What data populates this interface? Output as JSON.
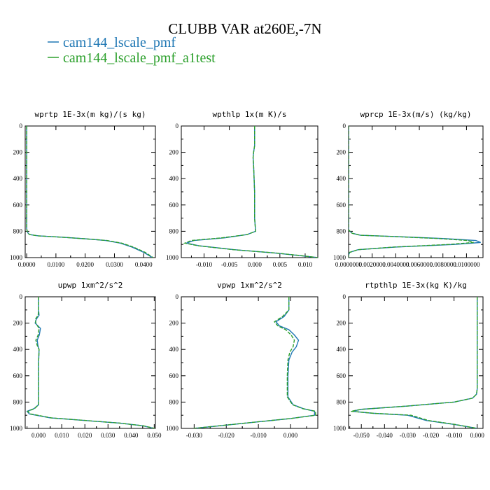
{
  "figure": {
    "title": "CLUBB VAR at260E,-7N",
    "legend": [
      {
        "label": "cam144_lscale_pmf",
        "color": "#1f77b4"
      },
      {
        "label": "cam144_lscale_pmf_a1test",
        "color": "#2ca02c"
      }
    ]
  },
  "chart_data": [
    {
      "type": "line",
      "title": "wprtp  1E-3x(m kg)/(s kg)",
      "xlim": [
        -0.0005,
        0.044
      ],
      "ylim": [
        1000,
        0
      ],
      "yticks": [
        0,
        200,
        400,
        600,
        800,
        1000
      ],
      "xticks": [
        0.0,
        0.01,
        0.02,
        0.03,
        0.04
      ],
      "xtick_labels": [
        "0.0000",
        "0.0100",
        "0.0200",
        "0.0300",
        "0.0400"
      ],
      "grid": false,
      "series": [
        {
          "color": "#1f77b4",
          "dash": false,
          "x": [
            0,
            0,
            0,
            0,
            0,
            0.0002,
            0.0005,
            0.001,
            0.004,
            0.012,
            0.02,
            0.027,
            0.032,
            0.036,
            0.04,
            0.043
          ],
          "y": [
            0,
            200,
            400,
            600,
            780,
            800,
            815,
            825,
            835,
            845,
            857,
            870,
            890,
            920,
            960,
            1000
          ]
        },
        {
          "color": "#2ca02c",
          "dash": true,
          "x": [
            0,
            0,
            0,
            0,
            0,
            0.0002,
            0.0005,
            0.001,
            0.004,
            0.012,
            0.02,
            0.0275,
            0.0325,
            0.0365,
            0.0405,
            0.0432
          ],
          "y": [
            0,
            200,
            400,
            600,
            780,
            800,
            815,
            825,
            835,
            845,
            857,
            870,
            890,
            920,
            960,
            1000
          ]
        }
      ]
    },
    {
      "type": "line",
      "title": "wpthlp  1x(m K)/s",
      "xlim": [
        -0.0145,
        0.0125
      ],
      "ylim": [
        1000,
        0
      ],
      "yticks": [
        0,
        200,
        400,
        600,
        800,
        1000
      ],
      "xticks": [
        -0.01,
        -0.005,
        0.0,
        0.005,
        0.01
      ],
      "xtick_labels": [
        "-0.010",
        "-0.005",
        "0.000",
        "0.005",
        "0.010"
      ],
      "grid": false,
      "series": [
        {
          "color": "#1f77b4",
          "dash": false,
          "x": [
            0,
            0,
            -0.0002,
            -0.0003,
            -0.0002,
            0,
            0,
            0.0002,
            -0.0015,
            -0.006,
            -0.012,
            -0.0135,
            -0.011,
            -0.004,
            0.004,
            0.009,
            0.0125
          ],
          "y": [
            0,
            150,
            200,
            240,
            300,
            500,
            700,
            800,
            825,
            850,
            870,
            890,
            910,
            940,
            965,
            985,
            1000
          ]
        },
        {
          "color": "#2ca02c",
          "dash": true,
          "x": [
            0,
            0,
            -0.0002,
            -0.0003,
            -0.0002,
            0,
            0,
            0.0002,
            -0.0015,
            -0.0065,
            -0.0125,
            -0.0138,
            -0.0112,
            -0.0042,
            0.0042,
            0.0092,
            0.0125
          ],
          "y": [
            0,
            150,
            200,
            240,
            300,
            500,
            700,
            800,
            825,
            850,
            870,
            890,
            910,
            940,
            965,
            985,
            1000
          ]
        }
      ]
    },
    {
      "type": "line",
      "title": "wprcp  1E-3x(m/s) (kg/kg)",
      "xlim": [
        0,
        0.0114
      ],
      "ylim": [
        1000,
        0
      ],
      "yticks": [
        0,
        200,
        400,
        600,
        800,
        1000
      ],
      "xticks": [
        0.0,
        0.002,
        0.004,
        0.006,
        0.008,
        0.01
      ],
      "xtick_labels": [
        "0.0000000",
        "0.0020000",
        "0.0040000",
        "0.0060000",
        "0.0080000",
        "0.0100000"
      ],
      "grid": false,
      "series": [
        {
          "color": "#1f77b4",
          "dash": false,
          "x": [
            0,
            0,
            0,
            0.0003,
            0.001,
            0.004,
            0.008,
            0.0108,
            0.0112,
            0.009,
            0.004,
            0.0008,
            0.0001,
            0,
            0
          ],
          "y": [
            0,
            400,
            790,
            815,
            830,
            840,
            855,
            870,
            885,
            900,
            920,
            940,
            960,
            980,
            1000
          ]
        },
        {
          "color": "#2ca02c",
          "dash": true,
          "x": [
            0,
            0,
            0,
            0.0003,
            0.001,
            0.0038,
            0.0076,
            0.0101,
            0.0106,
            0.0085,
            0.0038,
            0.0008,
            0.0001,
            0,
            0
          ],
          "y": [
            0,
            400,
            790,
            815,
            830,
            840,
            855,
            870,
            885,
            900,
            920,
            940,
            960,
            980,
            1000
          ]
        }
      ]
    },
    {
      "type": "line",
      "title": "upwp  1xm^2/s^2",
      "xlim": [
        -0.0058,
        0.0505
      ],
      "ylim": [
        1000,
        0
      ],
      "yticks": [
        0,
        200,
        400,
        600,
        800,
        1000
      ],
      "xticks": [
        0.0,
        0.01,
        0.02,
        0.03,
        0.04,
        0.05
      ],
      "xtick_labels": [
        "0.000",
        "0.010",
        "0.020",
        "0.030",
        "0.040",
        "0.050"
      ],
      "grid": false,
      "series": [
        {
          "color": "#1f77b4",
          "dash": false,
          "x": [
            0,
            0,
            0.0002,
            -0.001,
            -0.0015,
            0.0008,
            0.0003,
            -0.0006,
            -0.0003,
            0.0002,
            0,
            0,
            0,
            -0.002,
            -0.005,
            -0.004,
            0.005,
            0.02,
            0.035,
            0.045,
            0.05
          ],
          "y": [
            0,
            100,
            140,
            170,
            200,
            240,
            290,
            330,
            370,
            400,
            500,
            700,
            820,
            850,
            870,
            890,
            920,
            940,
            960,
            980,
            1000
          ]
        },
        {
          "color": "#2ca02c",
          "dash": true,
          "x": [
            0,
            0,
            -0.0002,
            -0.0014,
            -0.0012,
            0.0002,
            -0.0002,
            -0.0012,
            -0.0006,
            0.0002,
            0,
            0,
            0,
            -0.0018,
            -0.0047,
            -0.0035,
            0.0055,
            0.0205,
            0.0352,
            0.0452,
            0.0502
          ],
          "y": [
            0,
            100,
            140,
            170,
            200,
            240,
            290,
            330,
            370,
            400,
            500,
            700,
            820,
            850,
            870,
            890,
            920,
            940,
            960,
            980,
            1000
          ]
        }
      ]
    },
    {
      "type": "line",
      "title": "vpwp  1xm^2/s^2",
      "xlim": [
        -0.034,
        0.0085
      ],
      "ylim": [
        1000,
        0
      ],
      "yticks": [
        0,
        200,
        400,
        600,
        800,
        1000
      ],
      "xticks": [
        -0.03,
        -0.02,
        -0.01,
        0.0
      ],
      "xtick_labels": [
        "-0.030",
        "-0.020",
        "-0.010",
        "0.000"
      ],
      "grid": false,
      "series": [
        {
          "color": "#1f77b4",
          "dash": false,
          "x": [
            -0.0005,
            -0.0005,
            -0.002,
            -0.0045,
            -0.0035,
            -0.0005,
            0.0012,
            0.0025,
            0.0018,
            0.0005,
            -0.0005,
            -0.0008,
            -0.0008,
            0.0008,
            0.004,
            0.0075,
            0.0075,
            0,
            -0.01,
            -0.02,
            -0.03
          ],
          "y": [
            0,
            100,
            150,
            190,
            220,
            250,
            290,
            330,
            380,
            420,
            480,
            600,
            760,
            820,
            850,
            870,
            900,
            925,
            950,
            975,
            1000
          ]
        },
        {
          "color": "#2ca02c",
          "dash": true,
          "x": [
            -0.0005,
            -0.0005,
            -0.0025,
            -0.005,
            -0.004,
            -0.0015,
            0.0002,
            0.0012,
            0.0008,
            -0.0002,
            -0.0008,
            -0.001,
            -0.001,
            0.0006,
            0.0038,
            0.0078,
            0.0078,
            0,
            -0.0102,
            -0.0202,
            -0.0302
          ],
          "y": [
            0,
            100,
            150,
            190,
            220,
            250,
            290,
            330,
            380,
            420,
            480,
            600,
            760,
            820,
            850,
            870,
            900,
            925,
            950,
            975,
            1000
          ]
        }
      ]
    },
    {
      "type": "line",
      "title": "rtpthlp  1E-3x(kg K)/kg",
      "xlim": [
        -0.0555,
        0.0025
      ],
      "ylim": [
        1000,
        0
      ],
      "yticks": [
        0,
        200,
        400,
        600,
        800,
        1000
      ],
      "xticks": [
        -0.05,
        -0.04,
        -0.03,
        -0.02,
        -0.01,
        0.0
      ],
      "xtick_labels": [
        "-0.050",
        "-0.040",
        "-0.030",
        "-0.020",
        "-0.010",
        "0.000"
      ],
      "grid": false,
      "series": [
        {
          "color": "#1f77b4",
          "dash": false,
          "x": [
            0,
            0,
            0,
            -0.0003,
            -0.002,
            -0.01,
            -0.03,
            -0.05,
            -0.054,
            -0.045,
            -0.03,
            -0.022,
            -0.01,
            0
          ],
          "y": [
            0,
            400,
            700,
            740,
            770,
            800,
            830,
            855,
            870,
            885,
            900,
            940,
            970,
            1000
          ]
        },
        {
          "color": "#2ca02c",
          "dash": true,
          "x": [
            0,
            0,
            0,
            -0.0003,
            -0.002,
            -0.01,
            -0.03,
            -0.05,
            -0.0545,
            -0.0448,
            -0.0285,
            -0.021,
            -0.0095,
            0
          ],
          "y": [
            0,
            400,
            700,
            740,
            770,
            800,
            830,
            855,
            870,
            885,
            900,
            940,
            970,
            1000
          ]
        }
      ]
    }
  ]
}
